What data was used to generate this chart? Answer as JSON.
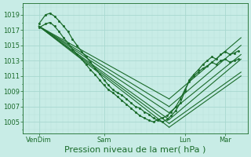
{
  "bg_color": "#c8ece6",
  "grid_color_major": "#a8d8d0",
  "grid_color_minor": "#b8e0d8",
  "line_color": "#1a6b2a",
  "xlabel": "Pression niveau de la mer( hPa )",
  "xlabel_fontsize": 8,
  "yticks": [
    1005,
    1007,
    1009,
    1011,
    1013,
    1015,
    1017,
    1019
  ],
  "xtick_labels": [
    "VenDim",
    "Sam",
    "Lun",
    "Mar"
  ],
  "xtick_positions": [
    0.07,
    0.36,
    0.72,
    0.9
  ],
  "ylim": [
    1003.5,
    1020.5
  ],
  "xlim": [
    0.0,
    1.0
  ],
  "straight_lines": [
    {
      "x": [
        0.07,
        0.65
      ],
      "y": [
        1017.5,
        1008.0
      ]
    },
    {
      "x": [
        0.07,
        0.65
      ],
      "y": [
        1017.5,
        1007.0
      ]
    },
    {
      "x": [
        0.07,
        0.65
      ],
      "y": [
        1017.5,
        1006.2
      ]
    },
    {
      "x": [
        0.07,
        0.65
      ],
      "y": [
        1017.5,
        1005.3
      ]
    },
    {
      "x": [
        0.07,
        0.65
      ],
      "y": [
        1017.5,
        1004.8
      ]
    },
    {
      "x": [
        0.07,
        0.65
      ],
      "y": [
        1017.5,
        1004.3
      ]
    }
  ],
  "straight_lines_right": [
    {
      "x": [
        0.65,
        0.97
      ],
      "y": [
        1008.0,
        1016.0
      ]
    },
    {
      "x": [
        0.65,
        0.97
      ],
      "y": [
        1007.0,
        1015.0
      ]
    },
    {
      "x": [
        0.65,
        0.97
      ],
      "y": [
        1006.2,
        1013.8
      ]
    },
    {
      "x": [
        0.65,
        0.97
      ],
      "y": [
        1005.3,
        1013.2
      ]
    },
    {
      "x": [
        0.65,
        0.97
      ],
      "y": [
        1004.8,
        1011.5
      ]
    },
    {
      "x": [
        0.65,
        0.97
      ],
      "y": [
        1004.3,
        1011.0
      ]
    }
  ],
  "jagged_x": [
    0.07,
    0.1,
    0.12,
    0.14,
    0.16,
    0.18,
    0.2,
    0.22,
    0.24,
    0.26,
    0.28,
    0.3,
    0.32,
    0.34,
    0.36,
    0.38,
    0.4,
    0.42,
    0.44,
    0.46,
    0.48,
    0.5,
    0.52,
    0.54,
    0.56,
    0.58,
    0.6,
    0.62,
    0.64,
    0.66,
    0.68,
    0.7,
    0.72,
    0.74,
    0.76,
    0.78,
    0.8,
    0.82,
    0.84,
    0.86,
    0.88,
    0.9,
    0.92,
    0.94,
    0.96
  ],
  "jagged_y1": [
    1017.8,
    1019.0,
    1019.2,
    1018.8,
    1018.2,
    1017.5,
    1016.8,
    1015.8,
    1015.0,
    1014.2,
    1013.5,
    1012.8,
    1012.0,
    1011.3,
    1010.5,
    1009.8,
    1009.2,
    1008.8,
    1008.5,
    1008.0,
    1007.5,
    1007.0,
    1006.8,
    1006.3,
    1006.0,
    1005.5,
    1005.2,
    1005.0,
    1005.3,
    1005.8,
    1006.5,
    1007.5,
    1009.0,
    1010.5,
    1011.2,
    1011.8,
    1012.5,
    1013.0,
    1013.5,
    1013.2,
    1013.8,
    1014.2,
    1013.8,
    1014.0,
    1014.3
  ],
  "jagged_y2": [
    1017.3,
    1017.8,
    1018.0,
    1017.5,
    1016.8,
    1016.0,
    1015.3,
    1014.5,
    1013.8,
    1013.2,
    1012.5,
    1011.8,
    1011.2,
    1010.5,
    1009.8,
    1009.2,
    1008.8,
    1008.3,
    1007.8,
    1007.3,
    1006.8,
    1006.3,
    1005.8,
    1005.5,
    1005.2,
    1005.0,
    1005.3,
    1005.5,
    1005.8,
    1006.3,
    1007.0,
    1008.0,
    1009.2,
    1010.3,
    1011.0,
    1011.5,
    1012.0,
    1012.3,
    1012.8,
    1012.5,
    1013.0,
    1013.2,
    1012.8,
    1013.0,
    1013.2
  ]
}
